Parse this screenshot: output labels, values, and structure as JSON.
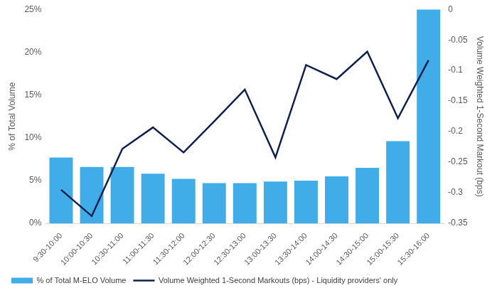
{
  "chart_data": {
    "type": "bar",
    "categories": [
      "9:30-10:00",
      "10:00-10:30",
      "10:30-11:00",
      "11:00-11:30",
      "11:30-12:00",
      "12:00-12:30",
      "12:30-13:00",
      "13:00-13:30",
      "13:30-14:00",
      "14:00-14:30",
      "14:30-15:00",
      "15:00-15:30",
      "15:30-16:00"
    ],
    "series": [
      {
        "name": "% of Total M-ELO Volume",
        "type": "bar",
        "color": "#41ade8",
        "values": [
          7.7,
          6.6,
          6.6,
          5.8,
          5.2,
          4.7,
          4.7,
          4.9,
          5.0,
          5.5,
          6.5,
          9.6,
          25.0
        ]
      },
      {
        "name": "Volume Weighted 1-Second Markouts (bps) - Liquidity providers' only",
        "type": "line",
        "axis": "y2",
        "color": "#0d1f4e",
        "values": [
          -0.295,
          -0.338,
          -0.228,
          -0.193,
          -0.234,
          -0.183,
          -0.131,
          -0.242,
          -0.091,
          -0.114,
          -0.069,
          -0.178,
          -0.083
        ]
      }
    ],
    "y_label": "% of Total Volume",
    "y2_label": "Volume Weighted 1-Second Markout (bps)",
    "ylim": [
      0,
      25
    ],
    "yticks": [
      {
        "value": 0,
        "label": "0%"
      },
      {
        "value": 5,
        "label": "5%"
      },
      {
        "value": 10,
        "label": "10%"
      },
      {
        "value": 15,
        "label": "15%"
      },
      {
        "value": 20,
        "label": "20%"
      },
      {
        "value": 25,
        "label": "25%"
      }
    ],
    "y2lim": [
      -0.35,
      0
    ],
    "y2ticks": [
      0,
      -0.05,
      -0.1,
      -0.15,
      -0.2,
      -0.25,
      -0.3,
      -0.35
    ],
    "grid": false,
    "legend": "bottom"
  }
}
